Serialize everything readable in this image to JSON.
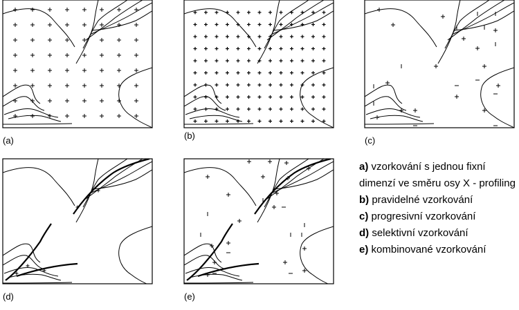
{
  "panels": [
    {
      "label": "(a)"
    },
    {
      "label": "(b)"
    },
    {
      "label": "(c)"
    },
    {
      "label": "(d)"
    },
    {
      "label": "(e)"
    }
  ],
  "legend": [
    {
      "key": "a)",
      "text": "vzorkování s jednou fixní dimenzí ve směru osy X - profiling"
    },
    {
      "key": "b)",
      "text": "pravidelné vzorkování"
    },
    {
      "key": "c)",
      "text": "progresivní vzorkování"
    },
    {
      "key": "d)",
      "text": "selektivní vzorkování"
    },
    {
      "key": "e)",
      "text": "kombinované vzorkování"
    }
  ]
}
